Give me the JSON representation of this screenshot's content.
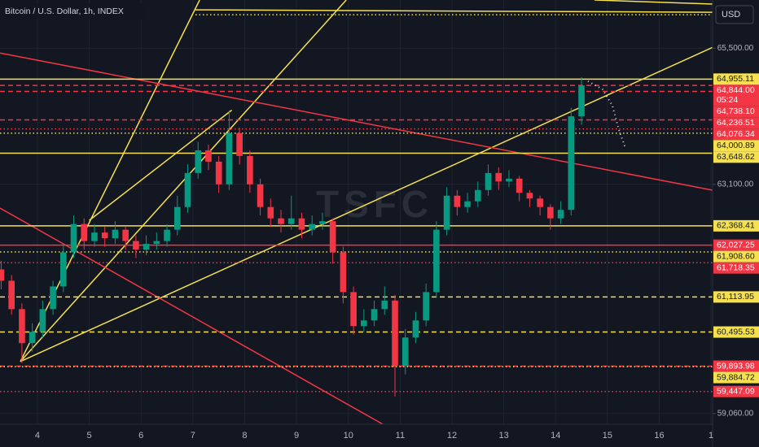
{
  "chart_data": {
    "type": "candlestick",
    "title": "Bitcoin / U.S. Dollar, 1h, INDEX",
    "currency": "USD",
    "watermark": "TSFC",
    "up_color": "#089981",
    "down_color": "#f23645",
    "grid": true,
    "xlim": [
      3.277,
      17.03
    ],
    "ylim": [
      58870,
      66350
    ],
    "xticks": [
      4,
      5,
      6,
      7,
      8,
      9,
      10,
      11,
      12,
      13,
      14,
      15,
      16,
      {
        "value": 17,
        "label": "1"
      }
    ],
    "yticks": [
      {
        "value": 65500,
        "label": "65,500.00"
      },
      {
        "value": 63100,
        "label": "63,100.00"
      },
      {
        "value": 59060,
        "label": "59,060.00"
      }
    ],
    "x": [
      3.3,
      3.5,
      3.7,
      3.9,
      4.1,
      4.3,
      4.5,
      4.7,
      4.9,
      5.1,
      5.3,
      5.5,
      5.7,
      5.9,
      6.1,
      6.3,
      6.5,
      6.7,
      6.9,
      7.1,
      7.3,
      7.5,
      7.7,
      7.9,
      8.1,
      8.3,
      8.5,
      8.7,
      8.9,
      9.1,
      9.3,
      9.5,
      9.7,
      9.9,
      10.1,
      10.3,
      10.5,
      10.7,
      10.9,
      11.1,
      11.3,
      11.5,
      11.7,
      11.9,
      12.1,
      12.3,
      12.5,
      12.7,
      12.9,
      13.1,
      13.3,
      13.5,
      13.7,
      13.9,
      14.1,
      14.3,
      14.5
    ],
    "open": [
      61600,
      61400,
      60900,
      60300,
      60500,
      60900,
      61300,
      61900,
      62400,
      62100,
      62250,
      62150,
      62300,
      62100,
      61950,
      62050,
      62100,
      62300,
      62700,
      63300,
      63700,
      63500,
      63100,
      64000,
      63600,
      63100,
      62700,
      62500,
      62400,
      62500,
      62300,
      62400,
      62450,
      61900,
      61200,
      60600,
      60700,
      60900,
      61050,
      59900,
      60400,
      60700,
      61200,
      62300,
      62900,
      62700,
      62800,
      63000,
      63300,
      63150,
      63200,
      62950,
      62850,
      62700,
      62500,
      62650,
      64300
    ],
    "high": [
      61750,
      61500,
      61000,
      60650,
      61050,
      61400,
      62050,
      62550,
      62500,
      62400,
      62350,
      62450,
      62350,
      62200,
      62200,
      62250,
      62400,
      62900,
      63450,
      63850,
      63800,
      63600,
      64400,
      64100,
      63700,
      63200,
      62850,
      62650,
      62900,
      62600,
      62550,
      62600,
      62500,
      62000,
      61300,
      60900,
      61050,
      61300,
      61150,
      60550,
      60850,
      61350,
      62450,
      63050,
      63000,
      62950,
      63150,
      63450,
      63400,
      63350,
      63250,
      63000,
      62900,
      62750,
      62800,
      64450,
      64990
    ],
    "low": [
      61250,
      60800,
      59950,
      60150,
      60400,
      60800,
      61200,
      61800,
      61950,
      62000,
      62000,
      62050,
      61950,
      61800,
      61850,
      61950,
      62000,
      62200,
      62600,
      63200,
      63350,
      62950,
      63000,
      63450,
      62950,
      62550,
      62350,
      62250,
      62300,
      62150,
      62200,
      62300,
      61700,
      61000,
      60450,
      60500,
      60600,
      60800,
      59360,
      59750,
      60300,
      60600,
      61100,
      62200,
      62550,
      62600,
      62700,
      62900,
      63000,
      63050,
      62800,
      62700,
      62550,
      62300,
      62400,
      62550,
      64150
    ],
    "close": [
      61400,
      60900,
      60300,
      60500,
      60900,
      61300,
      61900,
      62400,
      62100,
      62250,
      62150,
      62300,
      62100,
      61950,
      62050,
      62100,
      62300,
      62700,
      63300,
      63700,
      63500,
      63100,
      64000,
      63600,
      63100,
      62700,
      62500,
      62400,
      62500,
      62300,
      62400,
      62450,
      61900,
      61200,
      60600,
      60700,
      60900,
      61050,
      59900,
      60400,
      60700,
      61200,
      62300,
      62900,
      62700,
      62800,
      63000,
      63300,
      63150,
      63200,
      62950,
      62850,
      62700,
      62500,
      62650,
      64300,
      64844
    ],
    "levels": [
      {
        "value": 64955.11,
        "label": "64,955.11",
        "color": "#f5e050",
        "style": "solid"
      },
      {
        "value": 64844.0,
        "label": "64,844.00",
        "color": "#f23645",
        "style": "dashed",
        "countdown": "05:24"
      },
      {
        "value": 64738.1,
        "label": "64,738.10",
        "color": "#f23645",
        "style": "dashed"
      },
      {
        "value": 64236.51,
        "label": "64,236.51",
        "color": "#f23645",
        "style": "dashed"
      },
      {
        "value": 64076.34,
        "label": "64,076.34",
        "color": "#f23645",
        "style": "dotted"
      },
      {
        "value": 64000.89,
        "label": "64,000.89",
        "color": "#f5e050",
        "style": "dotted"
      },
      {
        "value": 63648.62,
        "label": "63,648.62",
        "color": "#f5e050",
        "style": "solid"
      },
      {
        "value": 62368.41,
        "label": "62,368.41",
        "color": "#f5e050",
        "style": "solid"
      },
      {
        "value": 62027.25,
        "label": "62,027.25",
        "color": "#f23645",
        "style": "solid"
      },
      {
        "value": 61908.6,
        "label": "61,908.60",
        "color": "#f5e050",
        "style": "dotted"
      },
      {
        "value": 61718.35,
        "label": "61,718.35",
        "color": "#f23645",
        "style": "dotted"
      },
      {
        "value": 61113.95,
        "label": "61,113.95",
        "color": "#f5e050",
        "style": "dashed"
      },
      {
        "value": 60495.53,
        "label": "60,495.53",
        "color": "#f5e050",
        "style": "dashed"
      },
      {
        "value": 59893.98,
        "label": "59,893.98",
        "color": "#f23645",
        "style": "dashed"
      },
      {
        "value": 59884.72,
        "label": "59,884.72",
        "color": "#f5e050",
        "style": "dotted"
      },
      {
        "value": 59447.09,
        "label": "59,447.09",
        "color": "#f23645",
        "style": "dotted"
      }
    ],
    "drawings": [
      {
        "color": "#f5e050",
        "style": "solid",
        "x": [
          3.67,
          7.13
        ],
        "y": [
          59976,
          66350
        ]
      },
      {
        "color": "#f5e050",
        "style": "solid",
        "x": [
          3.67,
          9.96
        ],
        "y": [
          59976,
          66350
        ]
      },
      {
        "color": "#f5e050",
        "style": "solid",
        "x": [
          3.67,
          17.03
        ],
        "y": [
          59976,
          65515
        ]
      },
      {
        "color": "#f5e050",
        "style": "solid",
        "x": [
          5.0,
          7.75
        ],
        "y": [
          62465,
          64408
        ]
      },
      {
        "color": "#f23645",
        "style": "solid",
        "x": [
          3.277,
          17.03
        ],
        "y": [
          65415,
          62997
        ]
      },
      {
        "color": "#f23645",
        "style": "solid",
        "x": [
          3.277,
          10.67
        ],
        "y": [
          62681,
          58868
        ]
      },
      {
        "color": "#f5e050",
        "style": "solid",
        "x": [
          7.05,
          17.03
        ],
        "y": [
          66177,
          66134
        ]
      },
      {
        "color": "#f5e050",
        "style": "dotted",
        "x": [
          7.05,
          17.03
        ],
        "y": [
          66091,
          66091
        ]
      },
      {
        "color": "#f5e050",
        "style": "solid",
        "x": [
          14.75,
          17.03
        ],
        "y": [
          66350,
          66278
        ]
      }
    ]
  }
}
